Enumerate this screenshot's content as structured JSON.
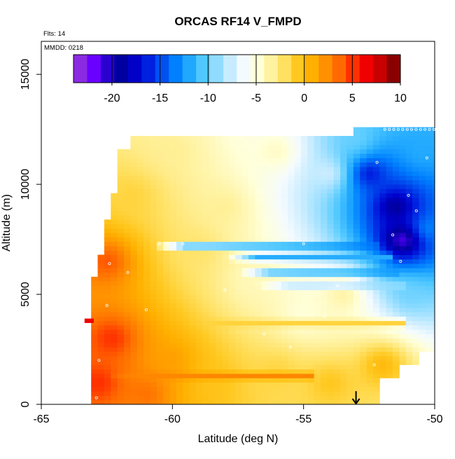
{
  "chart_data": {
    "type": "heatmap",
    "title": "ORCAS RF14 V_FMPD",
    "annotations": {
      "flights": "Flts: 14",
      "date": "MMDD: 0218"
    },
    "xlabel": "Latitude (deg N)",
    "ylabel": "Altitude (m)",
    "xlim": [
      -65,
      -50
    ],
    "ylim": [
      0,
      16500
    ],
    "x_ticks": [
      -65,
      -60,
      -55,
      -50
    ],
    "y_ticks": [
      0,
      5000,
      10000,
      15000
    ],
    "colorbar": {
      "min": -24,
      "max": 10,
      "ticks": [
        -20,
        -15,
        -10,
        -5,
        0,
        5,
        10
      ],
      "placement": "top-inside",
      "colors": [
        "#8a2be2",
        "#6a00ff",
        "#2a00d0",
        "#0000a0",
        "#0000c8",
        "#0020e0",
        "#0050f0",
        "#0080ff",
        "#20a8ff",
        "#50c8ff",
        "#90dcff",
        "#c8ecff",
        "#f4fbff",
        "#ffffd8",
        "#fff2a0",
        "#ffe060",
        "#ffc820",
        "#ffb000",
        "#ff9000",
        "#ff6a00",
        "#ff3000",
        "#f00000",
        "#c80000",
        "#8a0000"
      ]
    },
    "field_points": [
      {
        "lat": -62.8,
        "alt": 1000,
        "v": 6
      },
      {
        "lat": -62.3,
        "alt": 3000,
        "v": 6
      },
      {
        "lat": -61.0,
        "alt": 500,
        "v": 4
      },
      {
        "lat": -60.0,
        "alt": 2000,
        "v": 2
      },
      {
        "lat": -58.5,
        "alt": 1000,
        "v": 0
      },
      {
        "lat": -56.0,
        "alt": 1500,
        "v": -1
      },
      {
        "lat": -54.0,
        "alt": 1000,
        "v": 0
      },
      {
        "lat": -52.0,
        "alt": 1800,
        "v": 1
      },
      {
        "lat": -62.5,
        "alt": 6500,
        "v": 5
      },
      {
        "lat": -61.5,
        "alt": 9500,
        "v": -1
      },
      {
        "lat": -60.0,
        "alt": 11500,
        "v": -3
      },
      {
        "lat": -58.0,
        "alt": 9000,
        "v": -3
      },
      {
        "lat": -57.0,
        "alt": 5500,
        "v": -4
      },
      {
        "lat": -55.0,
        "alt": 4000,
        "v": -5
      },
      {
        "lat": -56.0,
        "alt": 11500,
        "v": -4
      },
      {
        "lat": -54.0,
        "alt": 10500,
        "v": -7
      },
      {
        "lat": -53.0,
        "alt": 12000,
        "v": -10
      },
      {
        "lat": -52.5,
        "alt": 10500,
        "v": -18
      },
      {
        "lat": -51.5,
        "alt": 9000,
        "v": -21
      },
      {
        "lat": -51.2,
        "alt": 7500,
        "v": -24
      },
      {
        "lat": -50.5,
        "alt": 11500,
        "v": -12
      },
      {
        "lat": -50.3,
        "alt": 8000,
        "v": -13
      },
      {
        "lat": -51.0,
        "alt": 5000,
        "v": -10
      },
      {
        "lat": -53.5,
        "alt": 5000,
        "v": -3
      },
      {
        "lat": -59.0,
        "alt": 7000,
        "v": -2
      }
    ],
    "bands": [
      {
        "alt": 7200,
        "lat_from": -60.7,
        "lat_to": -52.0,
        "v": -14
      },
      {
        "alt": 6700,
        "lat_from": -58.0,
        "lat_to": -51.5,
        "v": -12
      },
      {
        "alt": 6000,
        "lat_from": -57.5,
        "lat_to": -51.3,
        "v": -13
      },
      {
        "lat_from": -56.8,
        "lat_to": -51.2,
        "alt": 5400,
        "v": -9
      },
      {
        "lat_from": -59.5,
        "lat_to": -51.0,
        "alt": 3700,
        "v": -1
      },
      {
        "lat_from": -62.5,
        "lat_to": -54.5,
        "alt": 1300,
        "v": 3
      }
    ],
    "arrow_marker": {
      "lat": -53.0,
      "alt": 600
    }
  }
}
